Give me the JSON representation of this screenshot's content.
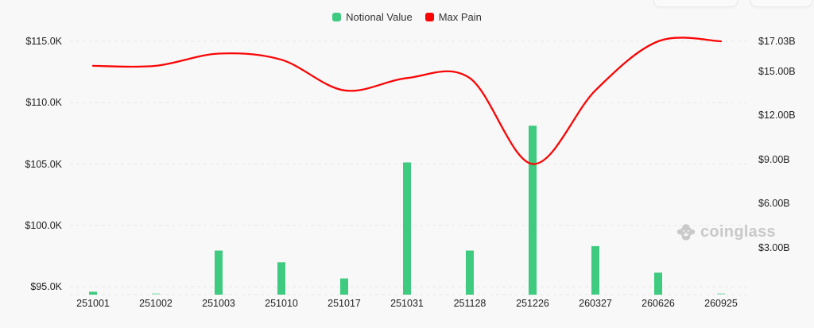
{
  "legend": {
    "items": [
      {
        "label": "Notional Value",
        "color": "#3ecb80"
      },
      {
        "label": "Max Pain",
        "color": "#fa0505"
      }
    ]
  },
  "watermark": {
    "text": "coinglass",
    "icon": "gorilla-logo",
    "color": "#c9c9c9"
  },
  "chart_data": {
    "type": "bar+line combo",
    "categories": [
      "251001",
      "251002",
      "251003",
      "251010",
      "251017",
      "251031",
      "251128",
      "251226",
      "260327",
      "260626",
      "260925"
    ],
    "series": [
      {
        "name": "Notional Value",
        "type": "bar",
        "axis": "right",
        "unit": "USD billions",
        "values": [
          0.2,
          0.1,
          3.0,
          2.2,
          1.1,
          9.0,
          3.0,
          11.5,
          3.3,
          1.5,
          0.1
        ],
        "muted_indices": [
          1,
          10
        ],
        "color": "#3ecb80",
        "muted_color": "#b4e9cd"
      },
      {
        "name": "Max Pain",
        "type": "line",
        "axis": "left",
        "unit": "USD thousands",
        "values": [
          113.0,
          113.0,
          114.0,
          113.5,
          111.0,
          112.0,
          112.0,
          105.0,
          111.0,
          115.0,
          115.0
        ],
        "color": "#fa0505",
        "smooth": true
      }
    ],
    "left_axis": {
      "ticks": [
        "$95.0K",
        "$100.0K",
        "$105.0K",
        "$110.0K",
        "$115.0K"
      ],
      "tick_values": [
        95,
        100,
        105,
        110,
        115
      ]
    },
    "right_axis": {
      "ticks": [
        "$3.00B",
        "$6.00B",
        "$9.00B",
        "$12.00B",
        "$15.00B",
        "$17.03B"
      ],
      "tick_values": [
        3,
        6,
        9,
        12,
        15,
        17.03
      ]
    },
    "grid": true,
    "grid_color": "#e9e9e9",
    "background": "#f8f8f8",
    "legend_position": "top-center"
  }
}
